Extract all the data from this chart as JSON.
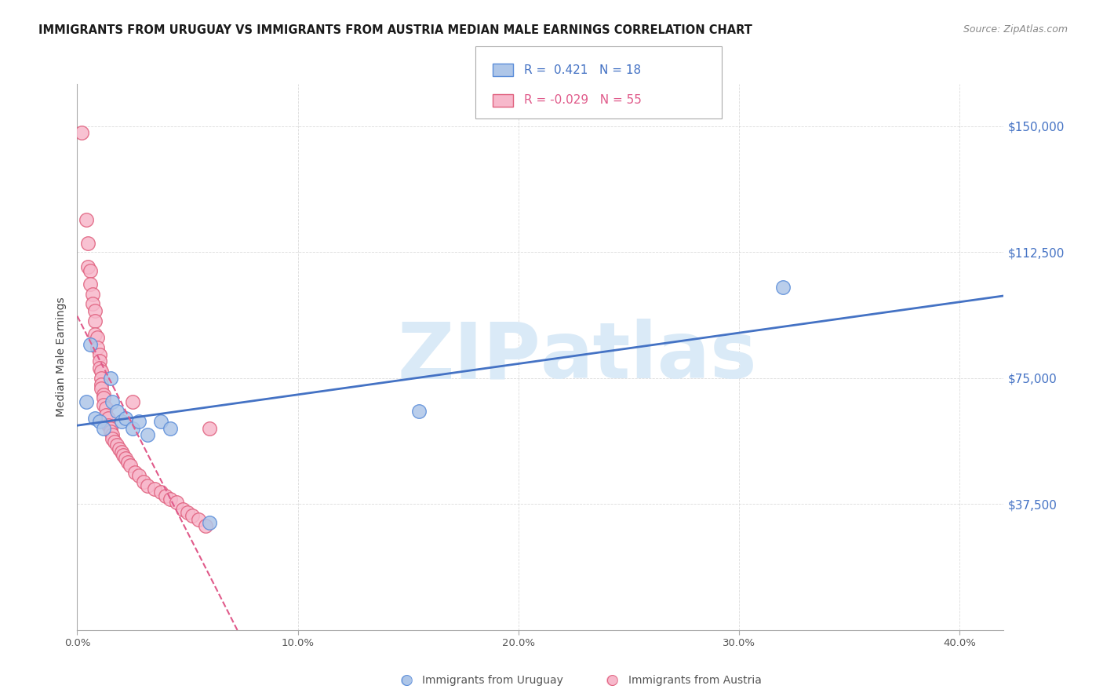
{
  "title": "IMMIGRANTS FROM URUGUAY VS IMMIGRANTS FROM AUSTRIA MEDIAN MALE EARNINGS CORRELATION CHART",
  "source": "Source: ZipAtlas.com",
  "ylabel": "Median Male Earnings",
  "ytick_values": [
    37500,
    75000,
    112500,
    150000
  ],
  "ymin": 0,
  "ymax": 162500,
  "xmin": 0.0,
  "xmax": 0.42,
  "legend_r_uruguay": "0.421",
  "legend_n_uruguay": "18",
  "legend_r_austria": "-0.029",
  "legend_n_austria": "55",
  "color_uruguay_fill": "#aec6e8",
  "color_uruguay_edge": "#5b8dd9",
  "color_austria_fill": "#f7b8cb",
  "color_austria_edge": "#e0607e",
  "color_line_uruguay": "#4472c4",
  "color_line_austria": "#e05a8a",
  "color_axis_right": "#4472c4",
  "watermark_color": "#daeaf7",
  "bg_color": "#ffffff",
  "grid_color": "#cccccc",
  "uruguay_points": [
    [
      0.004,
      68000
    ],
    [
      0.006,
      85000
    ],
    [
      0.008,
      63000
    ],
    [
      0.01,
      62000
    ],
    [
      0.012,
      60000
    ],
    [
      0.015,
      75000
    ],
    [
      0.016,
      68000
    ],
    [
      0.018,
      65000
    ],
    [
      0.02,
      62000
    ],
    [
      0.022,
      63000
    ],
    [
      0.025,
      60000
    ],
    [
      0.028,
      62000
    ],
    [
      0.032,
      58000
    ],
    [
      0.038,
      62000
    ],
    [
      0.042,
      60000
    ],
    [
      0.06,
      32000
    ],
    [
      0.155,
      65000
    ],
    [
      0.32,
      102000
    ]
  ],
  "austria_points": [
    [
      0.002,
      148000
    ],
    [
      0.004,
      122000
    ],
    [
      0.005,
      115000
    ],
    [
      0.005,
      108000
    ],
    [
      0.006,
      107000
    ],
    [
      0.006,
      103000
    ],
    [
      0.007,
      100000
    ],
    [
      0.007,
      97000
    ],
    [
      0.008,
      95000
    ],
    [
      0.008,
      92000
    ],
    [
      0.008,
      88000
    ],
    [
      0.009,
      87000
    ],
    [
      0.009,
      84000
    ],
    [
      0.01,
      82000
    ],
    [
      0.01,
      80000
    ],
    [
      0.01,
      78000
    ],
    [
      0.011,
      77000
    ],
    [
      0.011,
      75000
    ],
    [
      0.011,
      73000
    ],
    [
      0.011,
      72000
    ],
    [
      0.012,
      70000
    ],
    [
      0.012,
      69000
    ],
    [
      0.012,
      67000
    ],
    [
      0.013,
      66000
    ],
    [
      0.013,
      64000
    ],
    [
      0.014,
      63000
    ],
    [
      0.014,
      61000
    ],
    [
      0.015,
      60000
    ],
    [
      0.015,
      59000
    ],
    [
      0.016,
      58000
    ],
    [
      0.016,
      57000
    ],
    [
      0.017,
      56000
    ],
    [
      0.018,
      55000
    ],
    [
      0.019,
      54000
    ],
    [
      0.02,
      53000
    ],
    [
      0.021,
      52000
    ],
    [
      0.022,
      51000
    ],
    [
      0.023,
      50000
    ],
    [
      0.024,
      49000
    ],
    [
      0.025,
      68000
    ],
    [
      0.026,
      47000
    ],
    [
      0.028,
      46000
    ],
    [
      0.03,
      44000
    ],
    [
      0.032,
      43000
    ],
    [
      0.035,
      42000
    ],
    [
      0.038,
      41000
    ],
    [
      0.04,
      40000
    ],
    [
      0.042,
      39000
    ],
    [
      0.045,
      38000
    ],
    [
      0.048,
      36000
    ],
    [
      0.05,
      35000
    ],
    [
      0.052,
      34000
    ],
    [
      0.055,
      33000
    ],
    [
      0.058,
      31000
    ],
    [
      0.06,
      60000
    ]
  ]
}
